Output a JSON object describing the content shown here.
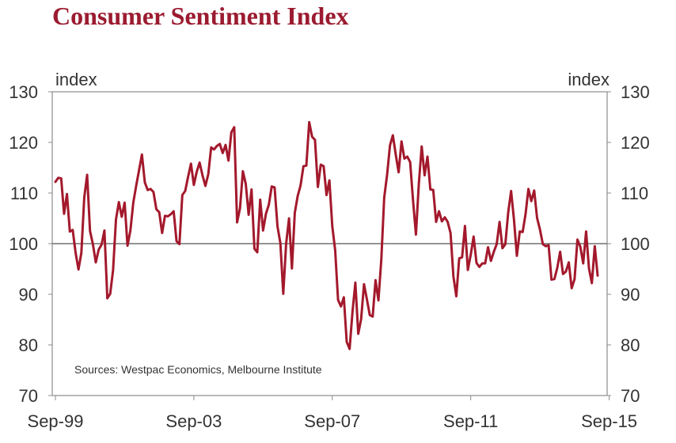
{
  "chart_data": {
    "type": "line",
    "title": "Consumer Sentiment Index",
    "ylabel_left": "index",
    "ylabel_right": "index",
    "source_note": "Sources: Westpac Economics, Melbourne Institute",
    "ylim": [
      70,
      130
    ],
    "yticks": [
      "130",
      "120",
      "110",
      "100",
      "90",
      "80",
      "70"
    ],
    "xticks": [
      "Sep-99",
      "Sep-03",
      "Sep-07",
      "Sep-11",
      "Sep-15"
    ],
    "xtick_index": [
      0,
      48,
      96,
      144,
      192
    ],
    "reference_line": 100,
    "line_color": "#a3192c",
    "series": [
      {
        "values": [
          112.2,
          113,
          112.9,
          105.9,
          109.8,
          102.4,
          102.7,
          98.2,
          94.9,
          98.2,
          109.1,
          113.6,
          102.5,
          99.9,
          96.3,
          98.8,
          99.8,
          102.6,
          89.2,
          90.1,
          94.8,
          104.8,
          108.2,
          105.3,
          108.1,
          99.6,
          102.6,
          108.1,
          111.4,
          114.5,
          117.6,
          112.1,
          110.6,
          110.8,
          110.2,
          106.8,
          106.2,
          102.1,
          105.5,
          105.4,
          105.8,
          106.4,
          100.5,
          99.9,
          109.6,
          110.4,
          113.2,
          115.8,
          111.6,
          114.2,
          116,
          113.5,
          111.4,
          113.7,
          119,
          118.6,
          119.3,
          119.7,
          117.9,
          119.5,
          116.4,
          122,
          123,
          104.2,
          107,
          114.3,
          111.8,
          105.7,
          110.7,
          99,
          98.3,
          108.7,
          102.6,
          105.9,
          107.7,
          111.3,
          111.1,
          103.4,
          100.1,
          90.1,
          100,
          105,
          95.1,
          106.1,
          109.4,
          111.5,
          115.3,
          115.4,
          124,
          121.1,
          120.5,
          111.2,
          115.6,
          115.3,
          109.6,
          112.5,
          103.4,
          98.7,
          88.9,
          87.6,
          89.4,
          80.6,
          79.2,
          86.5,
          92.3,
          82.2,
          85.1,
          92,
          89,
          85.9,
          85.6,
          92.8,
          88.8,
          96.9,
          109.1,
          113.6,
          119.4,
          121.4,
          117.6,
          114.1,
          120.2,
          116.8,
          117.2,
          116.1,
          108.5,
          101.8,
          111.8,
          119.2,
          113.5,
          117.2,
          110.7,
          110.6,
          104.3,
          106.4,
          104.4,
          105.2,
          104.3,
          102.1,
          93.5,
          89.6,
          97.1,
          97.3,
          103.5,
          94.8,
          97.8,
          101.4,
          96.2,
          95.4,
          96.1,
          96.1,
          99.3,
          96.6,
          98.4,
          99.9,
          104.3,
          99.1,
          99.9,
          106.2,
          110.4,
          104.7,
          97.6,
          102.4,
          102.3,
          105.8,
          110.8,
          108.4,
          110.5,
          105.1,
          102.8,
          99.9,
          99.5,
          99.7,
          92.9,
          93,
          95.2,
          98.4,
          94,
          94.5,
          96.3,
          91.2,
          93,
          100.8,
          99.4,
          96.1,
          102.4,
          95.1,
          92.2,
          99.5,
          93.7
        ]
      }
    ]
  }
}
